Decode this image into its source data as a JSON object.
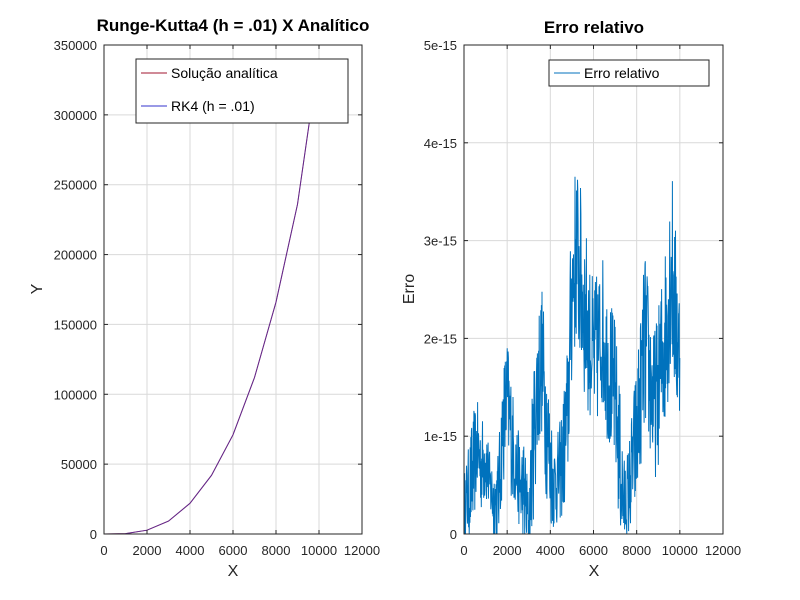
{
  "chart_data": [
    {
      "type": "line",
      "title": "Runge-Kutta4 (h = .01) X Analítico",
      "xlabel": "X",
      "ylabel": "Y",
      "xlim": [
        0,
        12000
      ],
      "ylim": [
        0,
        350000
      ],
      "x_ticks": [
        "0",
        "2000",
        "4000",
        "6000",
        "8000",
        "10000",
        "12000"
      ],
      "y_ticks": [
        "0",
        "50000",
        "100000",
        "150000",
        "200000",
        "250000",
        "300000",
        "350000"
      ],
      "grid": true,
      "legend_position": "top-right",
      "series": [
        {
          "name": "Solução analítica",
          "color": "#a2142f",
          "x": [
            0,
            1000,
            2000,
            3000,
            4000,
            5000,
            6000,
            7000,
            8000,
            9000,
            9600
          ],
          "y": [
            0,
            300,
            2700,
            9200,
            22000,
            42000,
            71000,
            112000,
            166000,
            236000,
            300000
          ]
        },
        {
          "name": "RK4 (h = .01)",
          "color": "#3333cc",
          "x": [
            0,
            1000,
            2000,
            3000,
            4000,
            5000,
            6000,
            7000,
            8000,
            9000,
            9600
          ],
          "y": [
            0,
            300,
            2700,
            9200,
            22000,
            42000,
            71000,
            112000,
            166000,
            236000,
            300000
          ]
        }
      ]
    },
    {
      "type": "line",
      "title": "Erro relativo",
      "xlabel": "X",
      "ylabel": "Erro",
      "xlim": [
        0,
        12000
      ],
      "ylim": [
        0,
        5e-15
      ],
      "x_ticks": [
        "0",
        "2000",
        "4000",
        "6000",
        "8000",
        "10000",
        "12000"
      ],
      "y_ticks": [
        "0",
        "1e-15",
        "2e-15",
        "3e-15",
        "4e-15",
        "5e-15"
      ],
      "grid": true,
      "legend_position": "top-right",
      "series": [
        {
          "name": "Erro relativo",
          "color": "#0072bd",
          "x": [
            0,
            200,
            400,
            600,
            800,
            1000,
            1200,
            1400,
            1600,
            1800,
            2000,
            2200,
            2400,
            2600,
            2800,
            3000,
            3200,
            3400,
            3600,
            3800,
            4000,
            4200,
            4400,
            4600,
            4800,
            5000,
            5200,
            5400,
            5600,
            5800,
            6000,
            6200,
            6400,
            6600,
            6800,
            7000,
            7200,
            7400,
            7600,
            7800,
            8000,
            8200,
            8400,
            8600,
            8800,
            9000,
            9200,
            9400,
            9600,
            9800,
            10000
          ],
          "y": [
            3e-16,
            4e-16,
            6e-16,
            9e-16,
            7e-16,
            8e-16,
            5e-16,
            3e-16,
            4e-16,
            1.1e-15,
            1.4e-15,
            1e-15,
            7e-16,
            5e-16,
            4e-16,
            1e-16,
            9e-16,
            1.5e-15,
            1.8e-15,
            1.2e-15,
            7e-16,
            5e-16,
            6e-16,
            8e-16,
            1.2e-15,
            2.5e-15,
            2.9e-15,
            2.6e-15,
            2.3e-15,
            2e-15,
            1.8e-15,
            1.9e-15,
            2.1e-15,
            1.8e-15,
            1.6e-15,
            1.4e-15,
            8e-16,
            3e-16,
            4e-16,
            7e-16,
            1e-15,
            1.5e-15,
            2e-15,
            1.6e-15,
            1.3e-15,
            1.5e-15,
            1.8e-15,
            2.2e-15,
            2.8e-15,
            2.2e-15,
            1.8e-15
          ],
          "noise": [
            2e-16,
            3e-16,
            4e-16,
            3e-16,
            3e-16,
            3e-16,
            2e-16,
            3e-16,
            3e-16,
            4e-16,
            4e-16,
            4e-16,
            3e-16,
            3e-16,
            4e-16,
            2e-16,
            5e-16,
            5e-16,
            5e-16,
            5e-16,
            4e-16,
            3e-16,
            3e-16,
            4e-16,
            5e-16,
            6e-16,
            6e-16,
            6e-16,
            6e-16,
            5e-16,
            5e-16,
            5e-16,
            5e-16,
            5e-16,
            5e-16,
            5e-16,
            5e-16,
            3e-16,
            3e-16,
            4e-16,
            5e-16,
            5e-16,
            6e-16,
            5e-16,
            5e-16,
            5e-16,
            6e-16,
            6e-16,
            7e-16,
            6e-16,
            5e-16
          ]
        }
      ]
    }
  ]
}
